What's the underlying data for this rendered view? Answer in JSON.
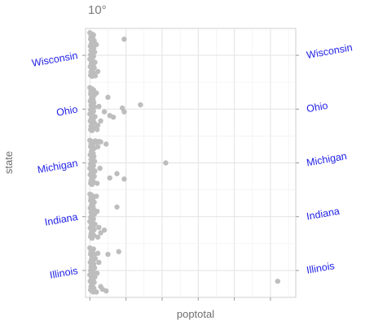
{
  "chart_data": {
    "type": "scatter",
    "title": "10°",
    "xlabel": "poptotal",
    "ylabel": "state",
    "categories": [
      "Illinois",
      "Indiana",
      "Michigan",
      "Ohio",
      "Wisconsin"
    ],
    "x_axis": {
      "range": [
        -0.12,
        5.7
      ],
      "tick_labels_shown": false,
      "minor_grid": true
    },
    "y_axis": {
      "tick_label_rotation_deg": 10,
      "secondary_axis_duplicate": true
    },
    "grid": true,
    "point_color": "#bdbdbd",
    "series": [
      {
        "state": "Illinois",
        "points": [
          [
            5.2,
            -0.2
          ],
          [
            0.0,
            0.42
          ],
          [
            0.05,
            0.38
          ],
          [
            0.1,
            0.4
          ],
          [
            0.03,
            0.35
          ],
          [
            0.08,
            0.33
          ],
          [
            0.02,
            0.3
          ],
          [
            0.12,
            0.28
          ],
          [
            0.06,
            0.25
          ],
          [
            0.15,
            0.22
          ],
          [
            0.04,
            0.2
          ],
          [
            0.09,
            0.18
          ],
          [
            0.01,
            0.15
          ],
          [
            0.11,
            0.12
          ],
          [
            0.07,
            0.1
          ],
          [
            0.03,
            0.07
          ],
          [
            0.13,
            0.05
          ],
          [
            0.05,
            0.02
          ],
          [
            0.02,
            0.0
          ],
          [
            0.1,
            -0.03
          ],
          [
            0.06,
            -0.05
          ],
          [
            0.0,
            -0.08
          ],
          [
            0.08,
            -0.1
          ],
          [
            0.14,
            -0.12
          ],
          [
            0.04,
            -0.15
          ],
          [
            0.09,
            -0.17
          ],
          [
            0.01,
            -0.2
          ],
          [
            0.12,
            -0.22
          ],
          [
            0.05,
            -0.25
          ],
          [
            0.07,
            -0.28
          ],
          [
            0.03,
            -0.3
          ],
          [
            0.11,
            -0.33
          ],
          [
            0.02,
            -0.36
          ],
          [
            0.06,
            -0.38
          ],
          [
            0.09,
            -0.4
          ],
          [
            0.2,
            -0.05
          ],
          [
            0.25,
            0.15
          ],
          [
            0.3,
            -0.3
          ],
          [
            0.35,
            -0.35
          ],
          [
            0.5,
            0.3
          ],
          [
            0.8,
            0.35
          ],
          [
            0.45,
            -0.38
          ],
          [
            0.22,
            0.32
          ],
          [
            0.18,
            -0.4
          ]
        ]
      },
      {
        "state": "Indiana",
        "points": [
          [
            0.0,
            0.42
          ],
          [
            0.05,
            0.4
          ],
          [
            0.1,
            0.37
          ],
          [
            0.03,
            0.35
          ],
          [
            0.08,
            0.32
          ],
          [
            0.02,
            0.3
          ],
          [
            0.12,
            0.27
          ],
          [
            0.06,
            0.24
          ],
          [
            0.04,
            0.21
          ],
          [
            0.09,
            0.19
          ],
          [
            0.01,
            0.16
          ],
          [
            0.11,
            0.13
          ],
          [
            0.07,
            0.1
          ],
          [
            0.03,
            0.08
          ],
          [
            0.13,
            0.05
          ],
          [
            0.05,
            0.02
          ],
          [
            0.02,
            -0.01
          ],
          [
            0.1,
            -0.04
          ],
          [
            0.06,
            -0.06
          ],
          [
            0.0,
            -0.09
          ],
          [
            0.08,
            -0.11
          ],
          [
            0.14,
            -0.14
          ],
          [
            0.04,
            -0.16
          ],
          [
            0.09,
            -0.19
          ],
          [
            0.01,
            -0.21
          ],
          [
            0.12,
            -0.24
          ],
          [
            0.05,
            -0.27
          ],
          [
            0.07,
            -0.29
          ],
          [
            0.03,
            -0.32
          ],
          [
            0.11,
            -0.35
          ],
          [
            0.02,
            -0.37
          ],
          [
            0.06,
            -0.4
          ],
          [
            0.2,
            0.1
          ],
          [
            0.25,
            -0.2
          ],
          [
            0.3,
            -0.3
          ],
          [
            0.4,
            -0.25
          ],
          [
            0.75,
            0.18
          ],
          [
            0.18,
            0.38
          ],
          [
            0.22,
            -0.38
          ]
        ]
      },
      {
        "state": "Michigan",
        "points": [
          [
            2.1,
            0.0
          ],
          [
            0.0,
            0.42
          ],
          [
            0.05,
            0.4
          ],
          [
            0.1,
            0.39
          ],
          [
            0.15,
            0.41
          ],
          [
            0.2,
            0.38
          ],
          [
            0.25,
            0.4
          ],
          [
            0.3,
            0.39
          ],
          [
            0.03,
            0.35
          ],
          [
            0.08,
            0.33
          ],
          [
            0.02,
            0.3
          ],
          [
            0.12,
            0.27
          ],
          [
            0.06,
            0.24
          ],
          [
            0.04,
            0.21
          ],
          [
            0.09,
            0.18
          ],
          [
            0.01,
            0.15
          ],
          [
            0.11,
            0.12
          ],
          [
            0.07,
            0.09
          ],
          [
            0.03,
            0.06
          ],
          [
            0.13,
            0.03
          ],
          [
            0.05,
            0.01
          ],
          [
            0.02,
            -0.02
          ],
          [
            0.1,
            -0.05
          ],
          [
            0.06,
            -0.07
          ],
          [
            0.0,
            -0.1
          ],
          [
            0.08,
            -0.12
          ],
          [
            0.14,
            -0.15
          ],
          [
            0.04,
            -0.17
          ],
          [
            0.09,
            -0.2
          ],
          [
            0.01,
            -0.22
          ],
          [
            0.12,
            -0.25
          ],
          [
            0.05,
            -0.28
          ],
          [
            0.07,
            -0.3
          ],
          [
            0.03,
            -0.33
          ],
          [
            0.11,
            -0.36
          ],
          [
            0.02,
            -0.38
          ],
          [
            0.06,
            -0.4
          ],
          [
            0.45,
            0.35
          ],
          [
            0.22,
            0.3
          ],
          [
            0.28,
            -0.1
          ],
          [
            0.75,
            -0.2
          ],
          [
            0.55,
            -0.28
          ],
          [
            0.95,
            -0.3
          ],
          [
            0.2,
            -0.38
          ]
        ]
      },
      {
        "state": "Ohio",
        "points": [
          [
            0.0,
            0.4
          ],
          [
            0.05,
            0.38
          ],
          [
            0.1,
            0.36
          ],
          [
            0.03,
            0.33
          ],
          [
            0.08,
            0.31
          ],
          [
            0.02,
            0.28
          ],
          [
            0.12,
            0.26
          ],
          [
            0.06,
            0.23
          ],
          [
            0.04,
            0.2
          ],
          [
            0.09,
            0.18
          ],
          [
            0.01,
            0.15
          ],
          [
            0.11,
            0.12
          ],
          [
            0.07,
            0.1
          ],
          [
            0.03,
            0.07
          ],
          [
            0.13,
            0.04
          ],
          [
            0.05,
            0.02
          ],
          [
            0.02,
            -0.01
          ],
          [
            0.1,
            -0.04
          ],
          [
            0.06,
            -0.06
          ],
          [
            0.0,
            -0.09
          ],
          [
            0.08,
            -0.12
          ],
          [
            0.14,
            -0.14
          ],
          [
            0.04,
            -0.17
          ],
          [
            0.09,
            -0.19
          ],
          [
            0.01,
            -0.22
          ],
          [
            0.12,
            -0.25
          ],
          [
            0.05,
            -0.27
          ],
          [
            0.07,
            -0.3
          ],
          [
            0.03,
            -0.32
          ],
          [
            0.11,
            -0.35
          ],
          [
            0.02,
            -0.38
          ],
          [
            0.06,
            -0.4
          ],
          [
            0.18,
            0.3
          ],
          [
            0.22,
            -0.3
          ],
          [
            0.25,
            0.05
          ],
          [
            0.3,
            -0.22
          ],
          [
            0.5,
            0.22
          ],
          [
            0.4,
            -0.05
          ],
          [
            0.55,
            -0.12
          ],
          [
            0.65,
            -0.15
          ],
          [
            0.9,
            0.02
          ],
          [
            0.95,
            -0.05
          ],
          [
            1.4,
            0.08
          ],
          [
            0.2,
            -0.38
          ]
        ]
      },
      {
        "state": "Wisconsin",
        "points": [
          [
            0.0,
            0.42
          ],
          [
            0.05,
            0.4
          ],
          [
            0.1,
            0.38
          ],
          [
            0.03,
            0.35
          ],
          [
            0.08,
            0.33
          ],
          [
            0.02,
            0.3
          ],
          [
            0.12,
            0.27
          ],
          [
            0.06,
            0.25
          ],
          [
            0.04,
            0.22
          ],
          [
            0.09,
            0.19
          ],
          [
            0.01,
            0.17
          ],
          [
            0.11,
            0.14
          ],
          [
            0.07,
            0.11
          ],
          [
            0.03,
            0.09
          ],
          [
            0.13,
            0.06
          ],
          [
            0.05,
            0.03
          ],
          [
            0.02,
            0.01
          ],
          [
            0.1,
            -0.02
          ],
          [
            0.06,
            -0.05
          ],
          [
            0.0,
            -0.07
          ],
          [
            0.08,
            -0.1
          ],
          [
            0.14,
            -0.13
          ],
          [
            0.04,
            -0.15
          ],
          [
            0.09,
            -0.18
          ],
          [
            0.01,
            -0.21
          ],
          [
            0.12,
            -0.23
          ],
          [
            0.05,
            -0.26
          ],
          [
            0.07,
            -0.29
          ],
          [
            0.03,
            -0.31
          ],
          [
            0.11,
            -0.34
          ],
          [
            0.02,
            -0.37
          ],
          [
            0.06,
            -0.39
          ],
          [
            0.18,
            0.2
          ],
          [
            0.22,
            -0.3
          ],
          [
            0.15,
            -0.38
          ],
          [
            0.95,
            0.3
          ]
        ]
      }
    ]
  }
}
